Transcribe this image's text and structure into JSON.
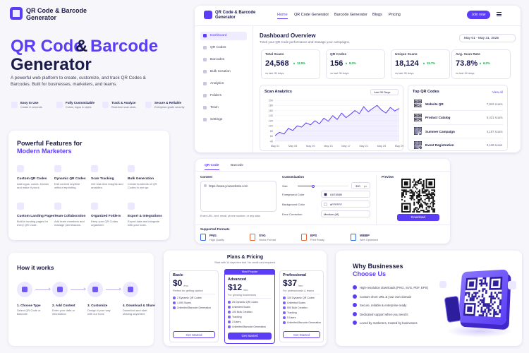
{
  "brand": "QR Code & Barcode Generator",
  "hero": {
    "title": {
      "part1": "QR Code",
      "amp": "&",
      "part2": "Barcode",
      "part3": "Generator"
    },
    "description": "A powerful web platform to create, customize, and track QR Codes & Barcodes. Built for businesses, marketers, and teams.",
    "features": [
      {
        "title": "Easy to Use",
        "text": "Create in seconds"
      },
      {
        "title": "Fully Customizable",
        "text": "Colors, logos & styles"
      },
      {
        "title": "Track & Analyze",
        "text": "Real-time scan stats"
      },
      {
        "title": "Secure & Reliable",
        "text": "Enterprise-grade security"
      }
    ]
  },
  "nav": {
    "links": [
      "Home",
      "QR Code Generator",
      "Barcode Generator",
      "Blogs",
      "Pricing"
    ],
    "cta": "Join now"
  },
  "dashboard": {
    "sidebar": [
      "Dashboard",
      "QR Codes",
      "Barcodes",
      "Bulk Creation",
      "Analytics",
      "Folders",
      "Team",
      "Settings"
    ],
    "title": "Dashboard Overview",
    "subtitle": "Track your QR Code performance and manage your campaigns.",
    "date_range": "May 01 - May 31, 2025",
    "stats": [
      {
        "label": "Total Scans",
        "value": "24,568",
        "change": "12.5%",
        "note": "vs last 30 days"
      },
      {
        "label": "QR Codes",
        "value": "156",
        "change": "8.3%",
        "note": "vs last 30 days"
      },
      {
        "label": "Unique Scans",
        "value": "18,124",
        "change": "15.7%",
        "note": "vs last 30 days"
      },
      {
        "label": "Avg. Scan Rate",
        "value": "73.8%",
        "change": "6.2%",
        "note": "vs last 30 days"
      }
    ],
    "chart": {
      "type": "line",
      "title": "Scan Analytics",
      "period": "Last 30 Days",
      "categories": [
        "May 01",
        null,
        null,
        null,
        "May 05",
        null,
        null,
        null,
        "May 09",
        null,
        null,
        null,
        "May 13",
        null,
        null,
        null,
        "May 17",
        null,
        null,
        null,
        "May 21",
        null,
        null,
        null,
        "May 25",
        null,
        null,
        null,
        "May 29"
      ],
      "values": [
        62,
        75,
        68,
        90,
        82,
        100,
        95,
        112,
        104,
        120,
        108,
        130,
        118,
        140,
        125,
        150,
        132,
        145,
        160,
        148,
        175,
        155,
        168,
        180,
        162,
        150,
        172,
        158,
        168
      ],
      "color": "#5b3df5",
      "ylim": [
        40,
        200
      ],
      "yticks": [
        40,
        60,
        80,
        100,
        120,
        140,
        160,
        180,
        200
      ],
      "grid": true
    },
    "top_codes": {
      "title": "Top QR Codes",
      "view_all": "View all",
      "items": [
        {
          "name": "Website QR",
          "scans": "7,842 scans"
        },
        {
          "name": "Product Catalog",
          "scans": "6,421 scans"
        },
        {
          "name": "Summer Campaign",
          "scans": "4,187 scans"
        },
        {
          "name": "Event Registration",
          "scans": "3,118 scans"
        }
      ]
    }
  },
  "features": {
    "title": "Powerful Features for",
    "highlight": "Modern Marketers",
    "items": [
      {
        "title": "Custom QR Codes",
        "text": "Add logos, colors, frames and make it yours."
      },
      {
        "title": "Dynamic QR Codes",
        "text": "Edit content anytime without reprinting."
      },
      {
        "title": "Scan Tracking",
        "text": "Get real-time insights and analytics."
      },
      {
        "title": "Bulk Generation",
        "text": "Create hundreds of QR Codes in one go."
      },
      {
        "title": "Custom Landing Pages",
        "text": "Built-in landing pages for every QR Code."
      },
      {
        "title": "Team Collaboration",
        "text": "Add team members and manage permissions."
      },
      {
        "title": "Organized Folders",
        "text": "Keep your QR Codes organized."
      },
      {
        "title": "Export & Integrations",
        "text": "Export data and integrate with your tools."
      }
    ]
  },
  "generator": {
    "tabs": [
      "QR Code",
      "Barcode"
    ],
    "content_label": "Content",
    "url": "https://www.yourwebsite.com",
    "hint": "Enter URL, text, email, phone number, or any data",
    "customization_label": "Customization",
    "size_label": "Size",
    "size_value": "300",
    "size_unit": "px",
    "fg_label": "Foreground Color",
    "fg_value": "#1E1B4B",
    "bg_label": "Background Color",
    "bg_value": "#FFFFFF",
    "ec_label": "Error Correction",
    "ec_value": "Medium (M)",
    "preview_label": "Preview",
    "download": "Download",
    "formats_label": "Supported Formats",
    "formats": [
      {
        "name": "PNG",
        "text": "High Quality"
      },
      {
        "name": "SVG",
        "text": "Vector Format"
      },
      {
        "name": "EPS",
        "text": "Print Ready"
      },
      {
        "name": "WEBP",
        "text": "Web Optimized"
      }
    ]
  },
  "how": {
    "title": "How it works",
    "steps": [
      {
        "title": "1. Choose Type",
        "text": "Select QR Code or Barcode"
      },
      {
        "title": "2. Add Content",
        "text": "Enter your data or information"
      },
      {
        "title": "3. Customize",
        "text": "Design it your way with our tools"
      },
      {
        "title": "4. Download & Share",
        "text": "Download and start sharing anywhere"
      }
    ]
  },
  "pricing": {
    "title": "Plans & Pricing",
    "subtitle": "Start with 14 days free trial. No credit card required.",
    "badge": "Most Popular",
    "plans": [
      {
        "name": "Basic",
        "price": "$0",
        "period": "/mo",
        "desc": "Perfect for getting started",
        "features": [
          "2 Dynamic QR Codes",
          "1,000 Scans",
          "Unlimited Barcode Generation"
        ],
        "cta": "Get Started"
      },
      {
        "name": "Advanced",
        "price": "$12",
        "period": "/mo",
        "desc": "For growing businesses",
        "features": [
          "25 Dynamic QR Codes",
          "Unlimited Scans",
          "100 Bulk Creation",
          "Tracking",
          "3 Users",
          "Unlimited Barcode Generation"
        ],
        "cta": "Get Started"
      },
      {
        "name": "Professional",
        "price": "$37",
        "period": "/mo",
        "desc": "For professionals & teams",
        "features": [
          "100 Dynamic QR Codes",
          "Unlimited Scans",
          "500 Bulk Creation",
          "Tracking",
          "5 Users",
          "Unlimited Barcode Generation"
        ],
        "cta": "Get Started"
      }
    ]
  },
  "why": {
    "title": "Why Businesses",
    "highlight": "Choose Us",
    "items": [
      "High-resolution downloads (PNG, SVG, PDF, EPS)",
      "Custom short URL & your own domain",
      "Secure, reliable & enterprise-ready",
      "Dedicated support when you need it",
      "Loved by marketers, trusted by businesses"
    ]
  }
}
